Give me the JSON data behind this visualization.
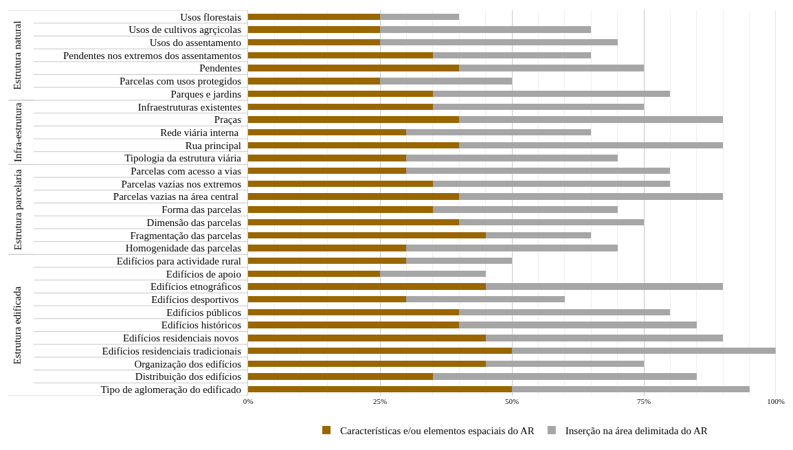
{
  "chart_data": {
    "type": "bar",
    "orientation": "horizontal",
    "stacked": true,
    "categories": [
      "Usos florestais",
      "Usos de cultivos agrçicolas",
      "Usos do assentamento",
      "Pendentes nos extremos dos assentamentos",
      "Pendentes",
      "Parcelas com usos protegidos",
      "Parques e jardins",
      "Infraestruturas existentes",
      "Praças",
      "Rede viária interna ",
      "Rua principal",
      "Tipologia da estrutura viária",
      "Parcelas com acesso a vias",
      "Parcelas vazias nos extremos",
      "Parcelas vazias na área central ",
      "Forma das parcelas",
      "Dimensão das parcelas",
      "Fragmentação das parcelas",
      "Homogenidade das parcelas",
      "Edifícios para actividade rural",
      "Edifícios de apoio",
      "Edifícios etnográficos",
      "Edifícios desportivos ",
      "Edifícios públicos",
      "Edifícios históricos",
      "Edifícios residenciais novos ",
      "Edifícios residenciais tradicionais",
      "Organização dos edifícios",
      "Distribuição dos edifícios",
      "Tipo de aglomeração do edificado"
    ],
    "series": [
      {
        "name": "Características e/ou elementos espaciais do AR",
        "color": "#996600",
        "values": [
          25,
          25,
          25,
          35,
          40,
          25,
          35,
          35,
          40,
          30,
          40,
          30,
          30,
          35,
          40,
          35,
          40,
          45,
          30,
          30,
          25,
          45,
          30,
          40,
          40,
          45,
          50,
          45,
          35,
          50
        ]
      },
      {
        "name": "Inserção na área delimitada do AR",
        "color": "#a6a6a6",
        "values": [
          15,
          40,
          45,
          30,
          35,
          25,
          45,
          40,
          50,
          35,
          50,
          40,
          50,
          45,
          50,
          35,
          35,
          20,
          40,
          20,
          20,
          45,
          30,
          40,
          45,
          45,
          50,
          30,
          50,
          45
        ]
      }
    ],
    "xlim": [
      0,
      100
    ],
    "xticks": [
      {
        "value": 0,
        "label": "0%"
      },
      {
        "value": 5,
        "label": null
      },
      {
        "value": 10,
        "label": null
      },
      {
        "value": 15,
        "label": null
      },
      {
        "value": 20,
        "label": null
      },
      {
        "value": 25,
        "label": "25%"
      },
      {
        "value": 30,
        "label": null
      },
      {
        "value": 35,
        "label": null
      },
      {
        "value": 40,
        "label": null
      },
      {
        "value": 45,
        "label": null
      },
      {
        "value": 50,
        "label": "50%"
      },
      {
        "value": 55,
        "label": null
      },
      {
        "value": 60,
        "label": null
      },
      {
        "value": 65,
        "label": null
      },
      {
        "value": 70,
        "label": null
      },
      {
        "value": 75,
        "label": "75%"
      },
      {
        "value": 80,
        "label": null
      },
      {
        "value": 85,
        "label": null
      },
      {
        "value": 90,
        "label": null
      },
      {
        "value": 95,
        "label": null
      },
      {
        "value": 100,
        "label": "100%"
      }
    ],
    "grid": "x",
    "legend": "bottom",
    "annotations": [
      "Estrutura natural",
      "Infra-estrutura",
      "Estrutura parcelaria",
      "Estrutura edificada"
    ]
  }
}
